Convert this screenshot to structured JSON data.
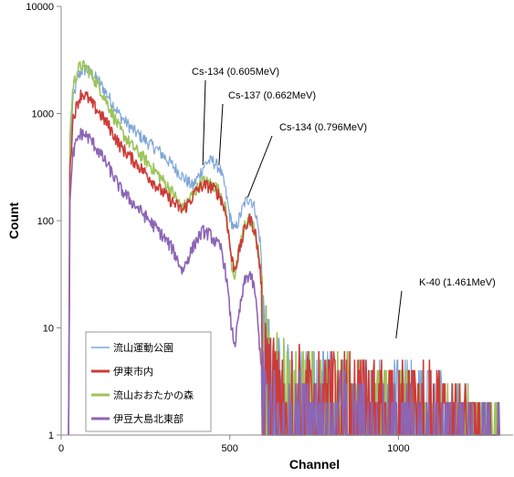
{
  "chart_data": {
    "type": "line",
    "xlabel": "Channel",
    "ylabel": "Count",
    "xlim": [
      0,
      1340
    ],
    "ylim": [
      1,
      10000
    ],
    "yscale": "log",
    "xticks": [
      0,
      500,
      1000
    ],
    "yticks": [
      1,
      10,
      100,
      1000,
      10000
    ],
    "grid": false,
    "legend_position": "bottom-left",
    "series": [
      {
        "name": "流山運動公園",
        "color": "#7ea6d8",
        "points": [
          [
            22,
            1
          ],
          [
            26,
            400
          ],
          [
            35,
            1350
          ],
          [
            50,
            2200
          ],
          [
            60,
            2500
          ],
          [
            75,
            2600
          ],
          [
            90,
            2350
          ],
          [
            110,
            2050
          ],
          [
            140,
            1450
          ],
          [
            175,
            950
          ],
          [
            210,
            720
          ],
          [
            250,
            560
          ],
          [
            290,
            450
          ],
          [
            330,
            330
          ],
          [
            370,
            240
          ],
          [
            390,
            210
          ],
          [
            410,
            270
          ],
          [
            425,
            330
          ],
          [
            435,
            360
          ],
          [
            450,
            360
          ],
          [
            470,
            310
          ],
          [
            485,
            210
          ],
          [
            500,
            110
          ],
          [
            515,
            80
          ],
          [
            530,
            110
          ],
          [
            545,
            150
          ],
          [
            560,
            165
          ],
          [
            575,
            130
          ],
          [
            590,
            65
          ],
          [
            600,
            22
          ],
          [
            610,
            8
          ],
          [
            640,
            5
          ],
          [
            700,
            4
          ],
          [
            800,
            3.5
          ],
          [
            900,
            3
          ],
          [
            1000,
            3
          ],
          [
            1100,
            2.5
          ],
          [
            1200,
            1.5
          ],
          [
            1300,
            1
          ]
        ]
      },
      {
        "name": "伊東市内",
        "color": "#cd3b38",
        "points": [
          [
            22,
            1
          ],
          [
            26,
            300
          ],
          [
            35,
            900
          ],
          [
            50,
            1300
          ],
          [
            60,
            1550
          ],
          [
            75,
            1450
          ],
          [
            90,
            1250
          ],
          [
            110,
            1050
          ],
          [
            140,
            780
          ],
          [
            175,
            500
          ],
          [
            210,
            380
          ],
          [
            250,
            280
          ],
          [
            290,
            200
          ],
          [
            330,
            150
          ],
          [
            360,
            125
          ],
          [
            380,
            150
          ],
          [
            400,
            190
          ],
          [
            420,
            215
          ],
          [
            440,
            210
          ],
          [
            460,
            190
          ],
          [
            475,
            160
          ],
          [
            490,
            110
          ],
          [
            505,
            45
          ],
          [
            515,
            35
          ],
          [
            530,
            55
          ],
          [
            545,
            85
          ],
          [
            560,
            105
          ],
          [
            575,
            80
          ],
          [
            590,
            35
          ],
          [
            600,
            14
          ],
          [
            615,
            6
          ],
          [
            650,
            4
          ],
          [
            700,
            4
          ],
          [
            800,
            3.5
          ],
          [
            900,
            3
          ],
          [
            1000,
            3
          ],
          [
            1100,
            2.5
          ],
          [
            1200,
            1.5
          ],
          [
            1300,
            1
          ]
        ]
      },
      {
        "name": "流山おおたかの森",
        "color": "#9dc45a",
        "points": [
          [
            22,
            1
          ],
          [
            26,
            600
          ],
          [
            35,
            1800
          ],
          [
            50,
            2600
          ],
          [
            60,
            2800
          ],
          [
            75,
            2700
          ],
          [
            90,
            2300
          ],
          [
            110,
            1850
          ],
          [
            140,
            1200
          ],
          [
            175,
            700
          ],
          [
            210,
            500
          ],
          [
            250,
            370
          ],
          [
            290,
            265
          ],
          [
            330,
            185
          ],
          [
            360,
            130
          ],
          [
            380,
            160
          ],
          [
            400,
            195
          ],
          [
            420,
            235
          ],
          [
            440,
            225
          ],
          [
            460,
            205
          ],
          [
            475,
            175
          ],
          [
            490,
            120
          ],
          [
            505,
            40
          ],
          [
            515,
            30
          ],
          [
            530,
            60
          ],
          [
            545,
            95
          ],
          [
            560,
            105
          ],
          [
            575,
            80
          ],
          [
            590,
            40
          ],
          [
            600,
            16
          ],
          [
            615,
            7
          ],
          [
            650,
            5
          ],
          [
            700,
            4
          ],
          [
            800,
            3.5
          ],
          [
            900,
            3
          ],
          [
            1000,
            2.5
          ],
          [
            1100,
            2
          ],
          [
            1200,
            1.5
          ],
          [
            1300,
            1
          ]
        ]
      },
      {
        "name": "伊豆大島北東部",
        "color": "#8c66b5",
        "points": [
          [
            22,
            1
          ],
          [
            26,
            150
          ],
          [
            35,
            420
          ],
          [
            50,
            600
          ],
          [
            60,
            660
          ],
          [
            75,
            620
          ],
          [
            90,
            560
          ],
          [
            110,
            450
          ],
          [
            140,
            320
          ],
          [
            175,
            200
          ],
          [
            210,
            150
          ],
          [
            250,
            110
          ],
          [
            290,
            80
          ],
          [
            330,
            55
          ],
          [
            360,
            34
          ],
          [
            380,
            48
          ],
          [
            400,
            65
          ],
          [
            420,
            80
          ],
          [
            440,
            75
          ],
          [
            460,
            62
          ],
          [
            475,
            55
          ],
          [
            490,
            30
          ],
          [
            505,
            10
          ],
          [
            515,
            7
          ],
          [
            530,
            15
          ],
          [
            545,
            28
          ],
          [
            560,
            32
          ],
          [
            575,
            22
          ],
          [
            590,
            6
          ],
          [
            600,
            3
          ],
          [
            615,
            2.5
          ],
          [
            700,
            2
          ],
          [
            800,
            2
          ],
          [
            900,
            2
          ],
          [
            1000,
            1.5
          ],
          [
            1100,
            1.2
          ],
          [
            1200,
            1
          ],
          [
            1300,
            1
          ]
        ]
      }
    ],
    "annotations": [
      {
        "text": "Cs-134 (0.605MeV)",
        "x": 420,
        "y": 330
      },
      {
        "text": "Cs-137 (0.662MeV)",
        "x": 468,
        "y": 330
      },
      {
        "text": "Cs-134 (0.796MeV)",
        "x": 553,
        "y": 165
      },
      {
        "text": "K-40 (1.461MeV)",
        "x": 993,
        "y": 8
      }
    ]
  }
}
